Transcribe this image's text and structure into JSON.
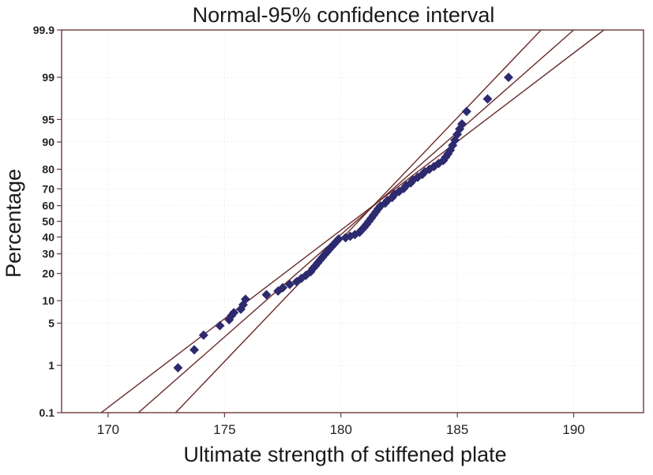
{
  "chart_data": {
    "type": "scatter",
    "title": "Normal-95% confidence interval",
    "xlabel": "Ultimate strength of stiffened plate",
    "ylabel": "Percentage",
    "xlim": [
      168,
      193
    ],
    "ylim_percent": [
      0.1,
      99.9
    ],
    "yscale": "normal-probability",
    "x_ticks": [
      170,
      175,
      180,
      185,
      190
    ],
    "y_ticks": [
      0.1,
      1,
      5,
      10,
      20,
      30,
      40,
      50,
      60,
      70,
      80,
      90,
      95,
      99,
      99.9
    ],
    "y_tick_labels": [
      "0.1",
      "1",
      "5",
      "10",
      "20",
      "30",
      "40",
      "50",
      "60",
      "70",
      "80",
      "90",
      "95",
      "99",
      "99.9"
    ],
    "x_tick_labels": [
      "170",
      "175",
      "180",
      "185",
      "190"
    ],
    "grid": true,
    "colors": {
      "points": "#2e2a6e",
      "lines": "#6b2a2a",
      "frame": "#6b3a3a"
    },
    "fit": {
      "mean": 180.69,
      "std": 3.2
    },
    "lines": [
      {
        "name": "lower",
        "points": [
          [
            169.7,
            0.1
          ],
          [
            191.3,
            99.9
          ]
        ]
      },
      {
        "name": "fit",
        "points": [
          [
            171.3,
            0.1
          ],
          [
            190.0,
            99.9
          ]
        ]
      },
      {
        "name": "upper",
        "points": [
          [
            172.9,
            0.1
          ],
          [
            188.6,
            99.9
          ]
        ]
      }
    ],
    "series": [
      {
        "values": [
          [
            173.0,
            0.9
          ],
          [
            173.7,
            1.9
          ],
          [
            174.1,
            3.3
          ],
          [
            174.8,
            4.6
          ],
          [
            175.2,
            5.6
          ],
          [
            175.3,
            6.4
          ],
          [
            175.4,
            7.0
          ],
          [
            175.7,
            7.8
          ],
          [
            175.8,
            8.9
          ],
          [
            175.9,
            10.4
          ],
          [
            176.8,
            11.8
          ],
          [
            177.3,
            13.0
          ],
          [
            177.5,
            14.2
          ],
          [
            177.8,
            15.4
          ],
          [
            178.1,
            16.5
          ],
          [
            178.3,
            17.8
          ],
          [
            178.5,
            19.2
          ],
          [
            178.7,
            20.8
          ],
          [
            178.8,
            22.3
          ],
          [
            178.9,
            23.6
          ],
          [
            179.0,
            25.0
          ],
          [
            179.1,
            26.5
          ],
          [
            179.2,
            28.0
          ],
          [
            179.3,
            29.5
          ],
          [
            179.4,
            31.0
          ],
          [
            179.5,
            32.6
          ],
          [
            179.6,
            34.1
          ],
          [
            179.7,
            35.6
          ],
          [
            179.8,
            37.2
          ],
          [
            179.9,
            38.7
          ],
          [
            180.2,
            39.6
          ],
          [
            180.4,
            40.5
          ],
          [
            180.6,
            41.5
          ],
          [
            180.8,
            43.0
          ],
          [
            180.9,
            44.6
          ],
          [
            181.0,
            46.2
          ],
          [
            181.1,
            48.0
          ],
          [
            181.2,
            50.0
          ],
          [
            181.3,
            52.0
          ],
          [
            181.4,
            54.0
          ],
          [
            181.5,
            56.0
          ],
          [
            181.6,
            58.0
          ],
          [
            181.7,
            59.8
          ],
          [
            181.9,
            61.5
          ],
          [
            182.0,
            63.2
          ],
          [
            182.2,
            65.0
          ],
          [
            182.3,
            66.8
          ],
          [
            182.5,
            68.5
          ],
          [
            182.7,
            70.2
          ],
          [
            182.8,
            71.8
          ],
          [
            183.0,
            73.3
          ],
          [
            183.1,
            74.8
          ],
          [
            183.3,
            76.2
          ],
          [
            183.5,
            77.6
          ],
          [
            183.6,
            78.8
          ],
          [
            183.8,
            80.0
          ],
          [
            184.0,
            81.2
          ],
          [
            184.2,
            82.5
          ],
          [
            184.4,
            83.7
          ],
          [
            184.5,
            85.0
          ],
          [
            184.6,
            86.2
          ],
          [
            184.7,
            87.5
          ],
          [
            184.8,
            89.0
          ],
          [
            184.9,
            90.5
          ],
          [
            185.0,
            92.0
          ],
          [
            185.1,
            93.2
          ],
          [
            185.2,
            94.2
          ],
          [
            185.4,
            96.2
          ],
          [
            186.3,
            97.6
          ],
          [
            187.2,
            99.0
          ]
        ]
      }
    ]
  }
}
